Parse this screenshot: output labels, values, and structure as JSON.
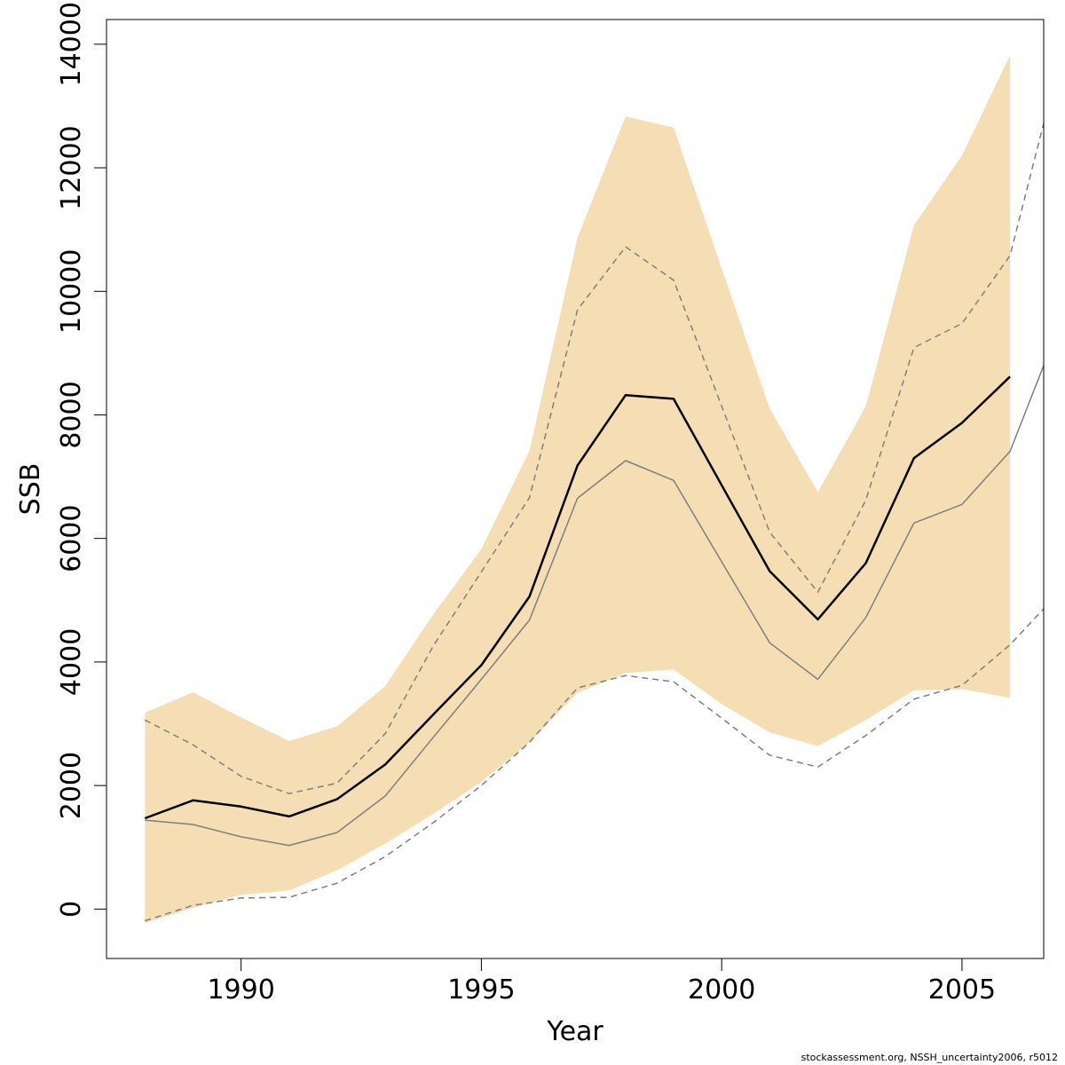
{
  "chart_data": {
    "type": "line",
    "xlabel": "Year",
    "ylabel": "SSB",
    "xlim": [
      1987.2,
      2006.7
    ],
    "ylim": [
      -800,
      14400
    ],
    "x_ticks": [
      1990,
      1995,
      2000,
      2005
    ],
    "y_ticks": [
      0,
      2000,
      4000,
      6000,
      8000,
      10000,
      12000,
      14000
    ],
    "grid": false,
    "legend": "none",
    "colors": {
      "band": "#f5deb3",
      "main_line": "#000000",
      "secondary_line": "#7f7f7f"
    },
    "band": {
      "x": [
        1988,
        1989,
        1990,
        1991,
        1992,
        1993,
        1994,
        1995,
        1996,
        1997,
        1998,
        1999,
        2000,
        2001,
        2002,
        2003,
        2004,
        2005,
        2006
      ],
      "upper": [
        3180,
        3510,
        3100,
        2720,
        2960,
        3610,
        4770,
        5830,
        7420,
        10870,
        12830,
        12650,
        10370,
        8100,
        6750,
        8140,
        11070,
        12200,
        13820
      ],
      "lower": [
        -230,
        20,
        230,
        300,
        630,
        1060,
        1540,
        2060,
        2700,
        3500,
        3820,
        3880,
        3320,
        2860,
        2640,
        3060,
        3540,
        3560,
        3420
      ]
    },
    "series": [
      {
        "style": "solid-thick",
        "color": "#000000",
        "x": [
          1988,
          1989,
          1990,
          1991,
          1992,
          1993,
          1994,
          1995,
          1996,
          1997,
          1998,
          1999,
          2000,
          2001,
          2002,
          2003,
          2004,
          2005,
          2006
        ],
        "values": [
          1470,
          1760,
          1660,
          1500,
          1780,
          2340,
          3150,
          3950,
          5060,
          7180,
          8320,
          8260,
          6860,
          5470,
          4690,
          5600,
          7300,
          7870,
          8620
        ]
      },
      {
        "style": "solid-thin",
        "color": "#7f7f7f",
        "x": [
          1988,
          1989,
          1990,
          1991,
          1992,
          1993,
          1994,
          1995,
          1996,
          1997,
          1998,
          1999,
          2000,
          2001,
          2002,
          2003,
          2004,
          2005,
          2006,
          2006.7
        ],
        "values": [
          1440,
          1370,
          1170,
          1030,
          1240,
          1830,
          2780,
          3720,
          4680,
          6650,
          7260,
          6940,
          5620,
          4310,
          3720,
          4720,
          6250,
          6550,
          7410,
          8800
        ]
      },
      {
        "style": "dashed",
        "color": "#7f7f7f",
        "x": [
          1988,
          1989,
          1990,
          1991,
          1992,
          1993,
          1994,
          1995,
          1996,
          1997,
          1998,
          1999,
          2000,
          2001,
          2002,
          2003,
          2004,
          2005,
          2006,
          2006.7
        ],
        "values": [
          3060,
          2660,
          2150,
          1870,
          2040,
          2840,
          4260,
          5460,
          6660,
          9700,
          10720,
          10180,
          8140,
          6100,
          5130,
          6620,
          9090,
          9480,
          10580,
          12720
        ]
      },
      {
        "style": "dashed",
        "color": "#7f7f7f",
        "x": [
          1988,
          1989,
          1990,
          1991,
          1992,
          1993,
          1994,
          1995,
          1996,
          1997,
          1998,
          1999,
          2000,
          2001,
          2002,
          2003,
          2004,
          2005,
          2006,
          2006.7
        ],
        "values": [
          -190,
          60,
          180,
          190,
          420,
          850,
          1400,
          2000,
          2700,
          3580,
          3780,
          3680,
          3090,
          2490,
          2300,
          2810,
          3400,
          3620,
          4280,
          4860
        ]
      }
    ]
  },
  "footer": "stockassessment.org, NSSH_uncertainty2006, r5012"
}
